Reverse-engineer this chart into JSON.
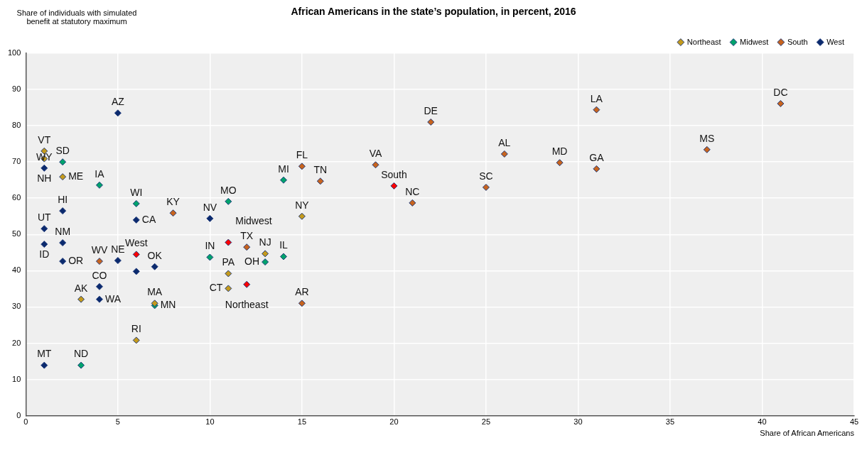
{
  "chart_data": {
    "type": "scatter",
    "title": "African Americans in the state’s population, in percent, 2016",
    "xlabel": "Share of African Americans",
    "ylabel": "Share of individuals with simulated benefit at statutory maximum",
    "xlim": [
      0,
      45
    ],
    "xticks": [
      0,
      5,
      10,
      15,
      20,
      25,
      30,
      35,
      40,
      45
    ],
    "ylim": [
      0,
      100
    ],
    "yticks": [
      0,
      10,
      20,
      30,
      40,
      50,
      60,
      70,
      80,
      90,
      100
    ],
    "grid": true,
    "legend": "top right",
    "marker": "diamond",
    "series": [
      {
        "name": "Northeast",
        "color": "#c49a1c",
        "x": [
          1,
          1,
          2,
          15,
          13,
          11,
          11,
          7,
          6,
          3
        ],
        "values": [
          73.0,
          70.9,
          65.9,
          55.0,
          44.7,
          39.2,
          35.1,
          31.0,
          20.8,
          32.1
        ]
      },
      {
        "name": "Midwest",
        "color": "#00a36c",
        "x": [
          2,
          4,
          6,
          11,
          14,
          10,
          13,
          14,
          7,
          3
        ],
        "values": [
          70.0,
          63.6,
          58.5,
          59.1,
          65.0,
          43.7,
          42.4,
          43.9,
          30.4,
          13.9
        ]
      },
      {
        "name": "South",
        "color": "#c8641e",
        "x": [
          8,
          4,
          12,
          15,
          15,
          16,
          19,
          22,
          21,
          25,
          26,
          29,
          31,
          31,
          37,
          41
        ],
        "values": [
          55.9,
          42.6,
          46.5,
          31.0,
          68.8,
          64.7,
          69.2,
          81.0,
          58.7,
          63.0,
          72.2,
          69.8,
          68.1,
          84.4,
          73.4,
          86.1
        ]
      },
      {
        "name": "West",
        "color": "#0b2a6e",
        "x": [
          5,
          1,
          2,
          1,
          1,
          2,
          2,
          5,
          6,
          7,
          6,
          4,
          4,
          1,
          10
        ],
        "values": [
          83.5,
          68.3,
          56.5,
          51.6,
          47.3,
          47.7,
          42.6,
          42.8,
          54.0,
          41.1,
          39.8,
          35.6,
          32.1,
          13.9,
          54.4
        ]
      },
      {
        "color": "#ff0000",
        "x": [
          12,
          11,
          20,
          6
        ],
        "values": [
          36.2,
          47.8,
          63.4,
          44.5
        ]
      }
    ],
    "annotations": [
      {
        "text": "VT",
        "x": 1,
        "y": 73.0
      },
      {
        "text": "NH",
        "x": 1,
        "y": 70.9
      },
      {
        "text": "ME",
        "x": 2,
        "y": 65.9
      },
      {
        "text": "NY",
        "x": 15,
        "y": 55.0
      },
      {
        "text": "NJ",
        "x": 13,
        "y": 44.7
      },
      {
        "text": "PA",
        "x": 11,
        "y": 39.2
      },
      {
        "text": "CT",
        "x": 11,
        "y": 35.1
      },
      {
        "text": "MA",
        "x": 7,
        "y": 31.0
      },
      {
        "text": "RI",
        "x": 6,
        "y": 20.8
      },
      {
        "text": "AK",
        "x": 3,
        "y": 32.1
      },
      {
        "text": "SD",
        "x": 2,
        "y": 70.0
      },
      {
        "text": "IA",
        "x": 4,
        "y": 63.6
      },
      {
        "text": "WI",
        "x": 6,
        "y": 58.5
      },
      {
        "text": "MO",
        "x": 11,
        "y": 59.1
      },
      {
        "text": "MI",
        "x": 14,
        "y": 65.0
      },
      {
        "text": "IN",
        "x": 10,
        "y": 43.7
      },
      {
        "text": "OH",
        "x": 13,
        "y": 42.4
      },
      {
        "text": "IL",
        "x": 14,
        "y": 43.9
      },
      {
        "text": "MN",
        "x": 7,
        "y": 30.4
      },
      {
        "text": "ND",
        "x": 3,
        "y": 13.9
      },
      {
        "text": "KY",
        "x": 8,
        "y": 55.9
      },
      {
        "text": "WV",
        "x": 4,
        "y": 42.6
      },
      {
        "text": "TX",
        "x": 12,
        "y": 46.5
      },
      {
        "text": "AR",
        "x": 15,
        "y": 31.0
      },
      {
        "text": "FL",
        "x": 15,
        "y": 68.8
      },
      {
        "text": "TN",
        "x": 16,
        "y": 64.7
      },
      {
        "text": "VA",
        "x": 19,
        "y": 69.2
      },
      {
        "text": "DE",
        "x": 22,
        "y": 81.0
      },
      {
        "text": "NC",
        "x": 21,
        "y": 58.7
      },
      {
        "text": "SC",
        "x": 25,
        "y": 63.0
      },
      {
        "text": "AL",
        "x": 26,
        "y": 72.2
      },
      {
        "text": "MD",
        "x": 29,
        "y": 69.8
      },
      {
        "text": "GA",
        "x": 31,
        "y": 68.1
      },
      {
        "text": "LA",
        "x": 31,
        "y": 84.4
      },
      {
        "text": "MS",
        "x": 37,
        "y": 73.4
      },
      {
        "text": "DC",
        "x": 41,
        "y": 86.1
      },
      {
        "text": "AZ",
        "x": 5,
        "y": 83.5
      },
      {
        "text": "WY",
        "x": 1,
        "y": 68.3
      },
      {
        "text": "HI",
        "x": 2,
        "y": 56.5
      },
      {
        "text": "UT",
        "x": 1,
        "y": 51.6
      },
      {
        "text": "ID",
        "x": 1,
        "y": 47.3
      },
      {
        "text": "NM",
        "x": 2,
        "y": 47.7
      },
      {
        "text": "OR",
        "x": 2,
        "y": 42.6
      },
      {
        "text": "NE",
        "x": 5,
        "y": 42.8
      },
      {
        "text": "CA",
        "x": 6,
        "y": 54.0
      },
      {
        "text": "OK",
        "x": 7,
        "y": 41.1
      },
      {
        "text": "CO",
        "x": 4,
        "y": 35.6
      },
      {
        "text": "WA",
        "x": 4,
        "y": 32.1
      },
      {
        "text": "MT",
        "x": 1,
        "y": 13.9
      },
      {
        "text": "NV",
        "x": 10,
        "y": 54.4
      },
      {
        "text": "Northeast",
        "x": 12,
        "y": 36.2
      },
      {
        "text": "Midwest",
        "x": 11,
        "y": 47.8
      },
      {
        "text": "South",
        "x": 20,
        "y": 63.4
      },
      {
        "text": "West",
        "x": 6,
        "y": 44.5
      }
    ]
  }
}
